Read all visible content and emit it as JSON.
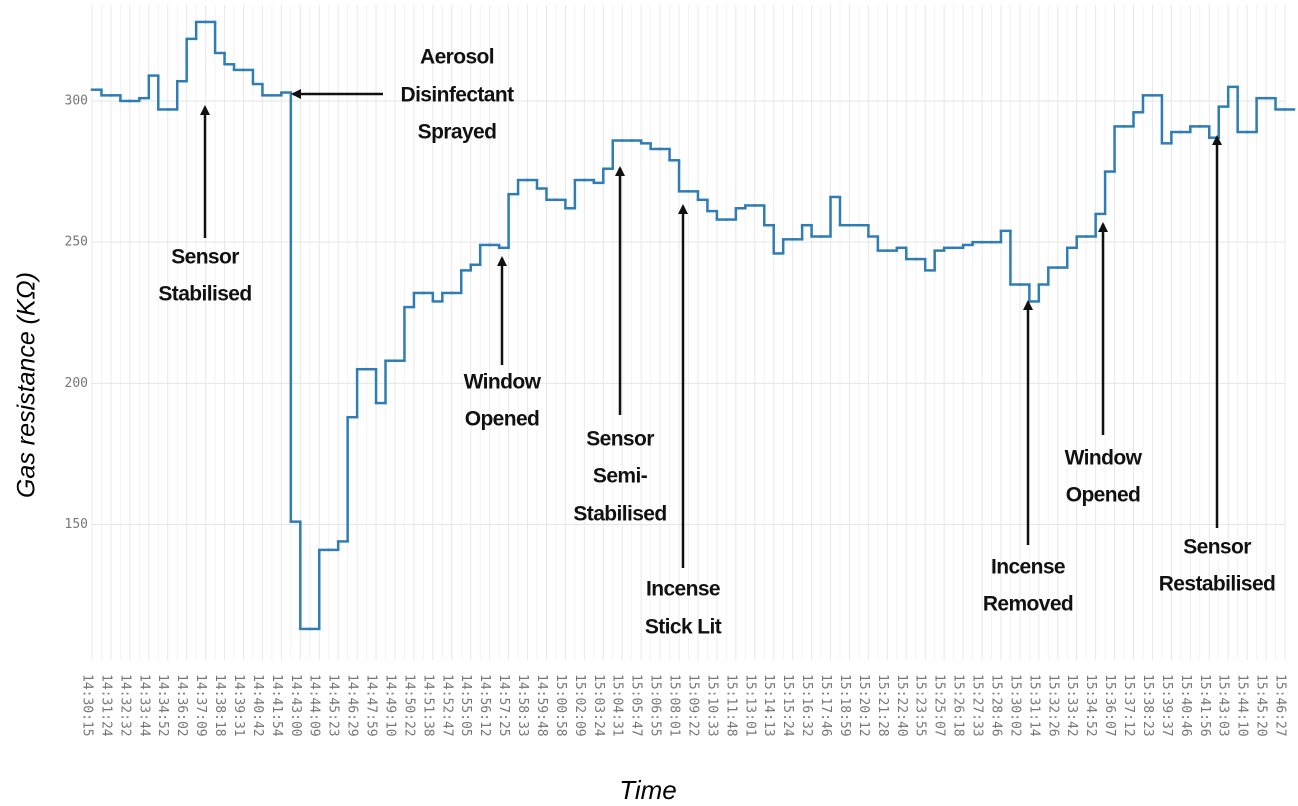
{
  "chart_data": {
    "type": "line",
    "drawstyle": "steps-post",
    "x_label": "Time",
    "y_label": "Gas resistance (KΩ)",
    "color": "#2f7db3",
    "grid": true,
    "ylim": [
      102,
      334
    ],
    "yticks": [
      150,
      200,
      250,
      300
    ],
    "categories": [
      "14:30:15",
      null,
      "14:31:24",
      null,
      "14:32:32",
      null,
      "14:33:44",
      null,
      "14:34:52",
      null,
      "14:36:02",
      null,
      "14:37:09",
      null,
      "14:38:18",
      null,
      "14:39:31",
      null,
      "14:40:42",
      null,
      "14:41:54",
      null,
      "14:43:00",
      null,
      "14:44:09",
      null,
      "14:45:23",
      null,
      "14:46:29",
      null,
      "14:47:59",
      null,
      "14:49:10",
      null,
      "14:50:22",
      null,
      "14:51:38",
      null,
      "14:52:47",
      null,
      "14:55:05",
      null,
      "14:56:12",
      null,
      "14:57:25",
      null,
      "14:58:33",
      null,
      "14:59:48",
      null,
      "15:00:58",
      null,
      "15:02:09",
      null,
      "15:03:24",
      null,
      "15:04:31",
      null,
      "15:05:47",
      null,
      "15:06:55",
      null,
      "15:08:01",
      null,
      "15:09:22",
      null,
      "15:10:33",
      null,
      "15:11:48",
      null,
      "15:13:01",
      null,
      "15:14:13",
      null,
      "15:15:24",
      null,
      "15:16:32",
      null,
      "15:17:46",
      null,
      "15:18:59",
      null,
      "15:20:12",
      null,
      "15:21:28",
      null,
      "15:22:40",
      null,
      "15:23:55",
      null,
      "15:25:07",
      null,
      "15:26:18",
      null,
      "15:27:33",
      null,
      "15:28:46",
      null,
      "15:30:02",
      null,
      "15:31:14",
      null,
      "15:32:26",
      null,
      "15:33:42",
      null,
      "15:34:52",
      null,
      "15:36:07",
      null,
      "15:37:12",
      null,
      "15:38:23",
      null,
      "15:39:37",
      null,
      "15:40:46",
      null,
      "15:41:56",
      null,
      "15:43:03",
      null,
      "15:44:10",
      null,
      "15:45:20",
      null,
      "15:46:27"
    ],
    "values": [
      304,
      302,
      302,
      300,
      300,
      301,
      309,
      297,
      297,
      307,
      322,
      328,
      328,
      317,
      313,
      311,
      311,
      306,
      302,
      302,
      303,
      151,
      113,
      113,
      141,
      141,
      144,
      188,
      205,
      205,
      193,
      208,
      208,
      227,
      232,
      232,
      229,
      232,
      232,
      240,
      242,
      249,
      249,
      248,
      267,
      272,
      272,
      269,
      265,
      265,
      262,
      272,
      272,
      271,
      276,
      286,
      286,
      286,
      285,
      283,
      283,
      279,
      268,
      268,
      265,
      261,
      258,
      258,
      262,
      263,
      263,
      256,
      246,
      251,
      251,
      256,
      252,
      252,
      266,
      256,
      256,
      256,
      252,
      247,
      247,
      248,
      244,
      244,
      240,
      247,
      248,
      248,
      249,
      250,
      250,
      250,
      254,
      235,
      235,
      229,
      235,
      241,
      241,
      248,
      252,
      252,
      260,
      275,
      291,
      291,
      296,
      302,
      302,
      285,
      289,
      289,
      291,
      291,
      287,
      298,
      305,
      289,
      289,
      301,
      301,
      297,
      297
    ],
    "annotations": [
      {
        "text": [
          "Sensor",
          "Stabilised"
        ]
      },
      {
        "text": [
          "Aerosol",
          "Disinfectant",
          "Sprayed"
        ]
      },
      {
        "text": [
          "Window",
          "Opened"
        ]
      },
      {
        "text": [
          "Sensor",
          "Semi-",
          "Stabilised"
        ]
      },
      {
        "text": [
          "Incense",
          "Stick Lit"
        ]
      },
      {
        "text": [
          "Incense",
          "Removed"
        ]
      },
      {
        "text": [
          "Window",
          "Opened"
        ]
      },
      {
        "text": [
          "Sensor",
          "Restabilised"
        ]
      }
    ]
  }
}
